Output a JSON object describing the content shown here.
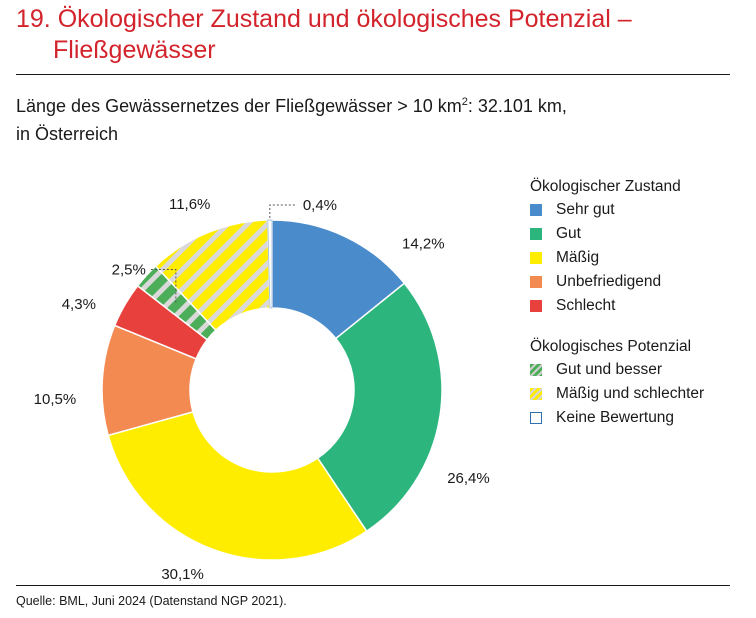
{
  "header": {
    "title_line1": "19. Ökologischer Zustand und ökologisches Potenzial –",
    "title_line2": "Fließgewässer",
    "subtitle_part1": "Länge des Gewässernetzes der Fließgewässer > 10 km",
    "subtitle_sup": "2",
    "subtitle_part2": ": 32.101 km,",
    "subtitle_line2": "in Österreich"
  },
  "footer": {
    "source": "Quelle: BML, Juni 2024 (Datenstand NGP 2021)."
  },
  "legend": {
    "zustand_title": "Ökologischer Zustand",
    "zustand_items": [
      {
        "label": "Sehr gut",
        "color": "#4a8ccb"
      },
      {
        "label": "Gut",
        "color": "#2db57e"
      },
      {
        "label": "Mäßig",
        "color": "#ffed00"
      },
      {
        "label": "Unbefriedigend",
        "color": "#f28a52"
      },
      {
        "label": "Schlecht",
        "color": "#e8403d"
      }
    ],
    "potenzial_title": "Ökologisches Potenzial",
    "potenzial_items": [
      {
        "label": "Gut und besser",
        "pattern": "hatch-green"
      },
      {
        "label": "Mäßig und schlechter",
        "pattern": "hatch-yellow"
      },
      {
        "label": "Keine Bewertung",
        "pattern": "empty"
      }
    ]
  },
  "chart_data": {
    "type": "pie",
    "variant": "donut",
    "start_direction": "top",
    "direction": "clockwise",
    "slices": [
      {
        "label": "Sehr gut",
        "value": 14.2,
        "display": "14,2%",
        "color": "#4a8ccb",
        "fill": "solid"
      },
      {
        "label": "Gut",
        "value": 26.4,
        "display": "26,4%",
        "color": "#2db57e",
        "fill": "solid"
      },
      {
        "label": "Mäßig",
        "value": 30.1,
        "display": "30,1%",
        "color": "#ffed00",
        "fill": "solid"
      },
      {
        "label": "Unbefriedigend",
        "value": 10.5,
        "display": "10,5%",
        "color": "#f28a52",
        "fill": "solid"
      },
      {
        "label": "Schlecht",
        "value": 4.3,
        "display": "4,3%",
        "color": "#e8403d",
        "fill": "solid"
      },
      {
        "label": "Gut und besser",
        "value": 2.5,
        "display": "2,5%",
        "color": "#4cae58",
        "fill": "hatched"
      },
      {
        "label": "Mäßig und schlechter",
        "value": 11.6,
        "display": "11,6%",
        "color": "#ffed00",
        "fill": "hatched"
      },
      {
        "label": "Keine Bewertung",
        "value": 0.4,
        "display": "0,4%",
        "color": "#ffffff",
        "fill": "empty"
      }
    ]
  }
}
